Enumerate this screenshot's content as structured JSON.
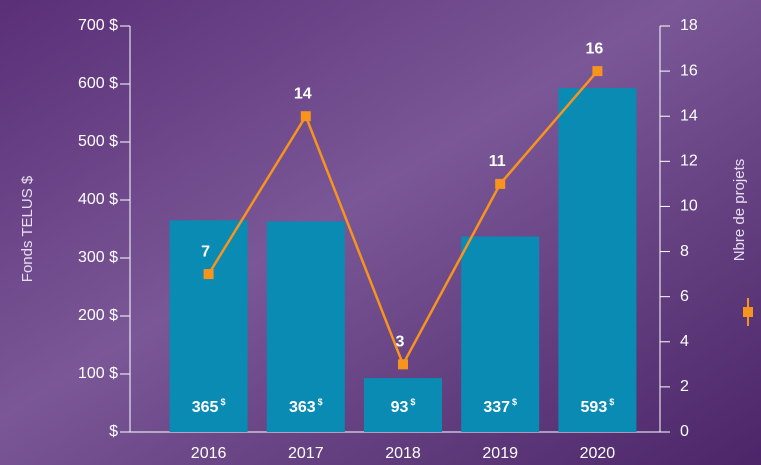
{
  "chart_data": {
    "type": "bar",
    "categories": [
      "2016",
      "2017",
      "2018",
      "2019",
      "2020"
    ],
    "ylabel": "Fonds TELUS $",
    "y2label": "Nbre de projets",
    "series": [
      {
        "type": "bar",
        "color": "#0a8bb3",
        "values": [
          365,
          363,
          93,
          337,
          593
        ],
        "value_labels": [
          "365 $",
          "363 $",
          "93 $",
          "337 $",
          "593 $"
        ]
      },
      {
        "type": "line",
        "axis": "y2",
        "color": "#f7941d",
        "values": [
          7,
          14,
          3,
          11,
          16
        ]
      }
    ],
    "ylim": [
      0,
      700
    ],
    "yticks": [
      {
        "value": 0,
        "label": "$"
      },
      {
        "value": 100,
        "label": "100 $"
      },
      {
        "value": 200,
        "label": "200 $"
      },
      {
        "value": 300,
        "label": "300 $"
      },
      {
        "value": 400,
        "label": "400 $"
      },
      {
        "value": 500,
        "label": "500 $"
      },
      {
        "value": 600,
        "label": "600 $"
      },
      {
        "value": 700,
        "label": "700 $"
      }
    ],
    "y2lim": [
      0,
      18
    ],
    "y2ticks": [
      0,
      2,
      4,
      6,
      8,
      10,
      12,
      14,
      16,
      18
    ]
  }
}
